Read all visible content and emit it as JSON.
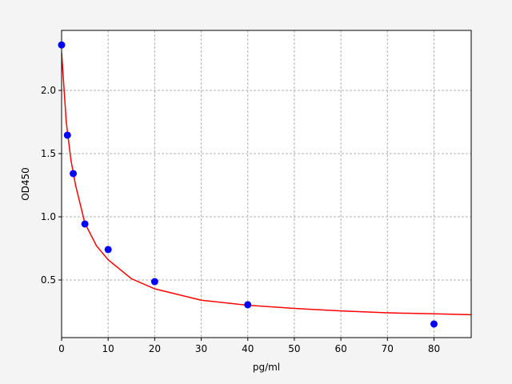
{
  "chart_data": {
    "type": "scatter",
    "x_label": "pg/ml",
    "y_label": "OD450",
    "xlim": [
      0,
      88
    ],
    "ylim": [
      0.044,
      2.475
    ],
    "xticks": [
      0,
      10,
      20,
      30,
      40,
      50,
      60,
      70,
      80
    ],
    "yticks": [
      0.5,
      {
        "value": 1,
        "label": "1.0"
      },
      1.5,
      {
        "value": 2,
        "label": "2.0"
      }
    ],
    "grid": true,
    "series": [
      {
        "type": "scatter",
        "color": "#0000ff",
        "x": [
          0,
          1.25,
          2.5,
          5,
          10,
          20,
          40,
          80
        ],
        "values": [
          2.36,
          1.646,
          1.342,
          0.943,
          0.741,
          0.487,
          0.304,
          0.152
        ]
      },
      {
        "type": "line",
        "color": "#ff0000",
        "x": [
          0,
          1,
          2,
          3,
          5,
          7.5,
          10,
          15,
          20,
          30,
          40,
          50,
          60,
          70,
          80,
          88
        ],
        "values": [
          2.3,
          1.75,
          1.45,
          1.25,
          0.95,
          0.77,
          0.66,
          0.51,
          0.43,
          0.34,
          0.3,
          0.275,
          0.255,
          0.24,
          0.232,
          0.225
        ]
      }
    ]
  }
}
